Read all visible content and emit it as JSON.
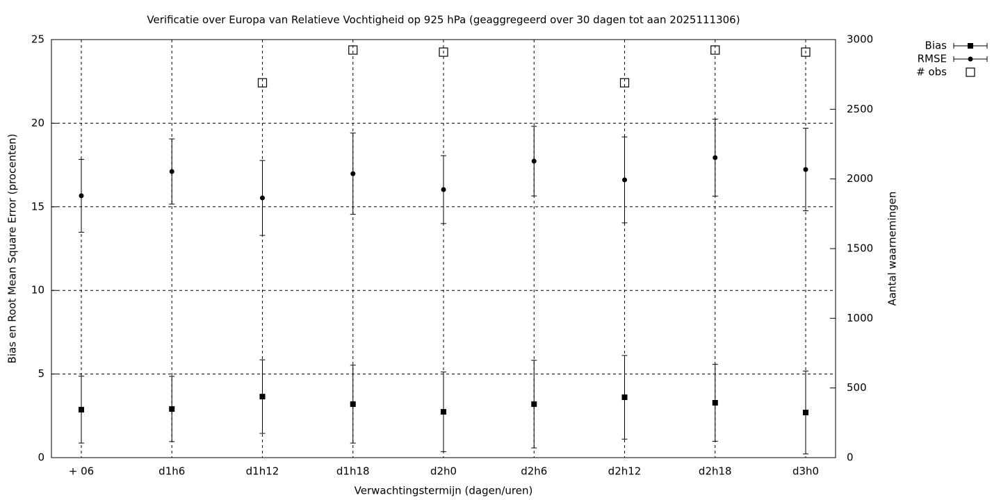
{
  "chart_data": {
    "type": "errorbar",
    "title": "Verificatie over Europa van Relatieve Vochtigheid op 925 hPa (geaggregeerd over 30 dagen tot aan 2025111306)",
    "x_label": "Verwachtingstermijn (dagen/uren)",
    "y_label": "Bias en Root Mean Square Error (procenten)",
    "y2_label": "Aantal waarnemingen",
    "categories": [
      "+ 06",
      "d1h6",
      "d1h12",
      "d1h18",
      "d2h0",
      "d2h6",
      "d2h12",
      "d2h18",
      "d3h0"
    ],
    "series": [
      {
        "name": "Bias",
        "color": "#000000",
        "values": [
          2.87,
          2.91,
          3.65,
          3.2,
          2.74,
          3.2,
          3.61,
          3.28,
          2.7
        ],
        "errors": [
          2.0,
          1.95,
          2.2,
          2.33,
          2.38,
          2.62,
          2.5,
          2.3,
          2.48
        ]
      },
      {
        "name": "RMSE",
        "color": "#000000",
        "values": [
          15.66,
          17.11,
          15.53,
          16.98,
          16.03,
          17.73,
          16.61,
          17.94,
          17.23
        ],
        "errors": [
          2.18,
          1.95,
          2.24,
          2.43,
          2.03,
          2.08,
          2.57,
          2.3,
          2.47
        ]
      },
      {
        "name": "# obs",
        "color": "#000000",
        "axis": "y2",
        "values": [
          null,
          null,
          2690,
          2925,
          2910,
          null,
          2690,
          2925,
          2910
        ]
      }
    ],
    "ylim": [
      0,
      25
    ],
    "yticks": [
      0,
      5,
      10,
      15,
      20,
      25
    ],
    "y2lim": [
      0,
      3000
    ],
    "y2ticks": [
      0,
      500,
      1000,
      1500,
      2000,
      2500,
      3000
    ],
    "grid": true,
    "legend": "top-right"
  }
}
